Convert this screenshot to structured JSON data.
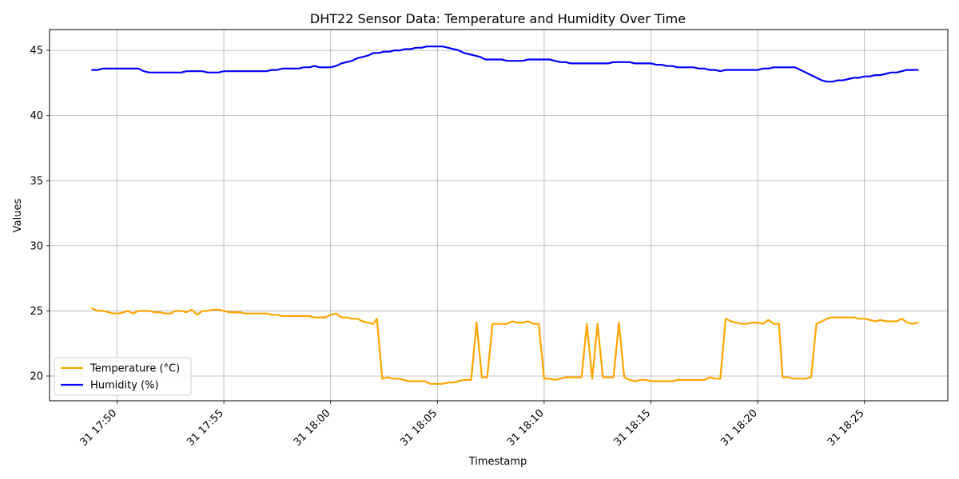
{
  "chart_data": {
    "type": "line",
    "title": "DHT22 Sensor Data: Temperature and Humidity Over Time",
    "xlabel": "Timestamp",
    "ylabel": "Values",
    "grid": true,
    "legend_position": "lower-left",
    "ylim": [
      18.1,
      46.6
    ],
    "xlim_minutes": [
      -2.3,
      5.07
    ],
    "x_ticks": [
      {
        "label": "31 17:50",
        "minute": 0
      },
      {
        "label": "31 17:55",
        "minute": 5
      },
      {
        "label": "31 18:00",
        "minute": 10
      },
      {
        "label": "31 18:05",
        "minute": 15
      },
      {
        "label": "31 18:10",
        "minute": 20
      },
      {
        "label": "31 18:15",
        "minute": 25
      },
      {
        "label": "31 18:20",
        "minute": 30
      },
      {
        "label": "31 18:25",
        "minute": 35
      }
    ],
    "y_ticks": [
      20,
      25,
      30,
      35,
      40,
      45
    ],
    "series": [
      {
        "name": "Temperature (°C)",
        "color": "#ffa500",
        "points": [
          [
            "17:48:50",
            25.2
          ],
          [
            "17:49:05",
            25.0
          ],
          [
            "17:49:20",
            25.0
          ],
          [
            "17:49:35",
            24.9
          ],
          [
            "17:49:50",
            24.8
          ],
          [
            "17:50:05",
            24.8
          ],
          [
            "17:50:20",
            24.9
          ],
          [
            "17:50:30",
            25.0
          ],
          [
            "17:50:45",
            24.8
          ],
          [
            "17:51:00",
            25.0
          ],
          [
            "17:51:15",
            25.0
          ],
          [
            "17:51:30",
            25.0
          ],
          [
            "17:51:45",
            24.9
          ],
          [
            "17:52:00",
            24.9
          ],
          [
            "17:52:15",
            24.8
          ],
          [
            "17:52:30",
            24.8
          ],
          [
            "17:52:45",
            25.0
          ],
          [
            "17:53:00",
            25.0
          ],
          [
            "17:53:15",
            24.9
          ],
          [
            "17:53:30",
            25.1
          ],
          [
            "17:53:45",
            24.7
          ],
          [
            "17:54:00",
            25.0
          ],
          [
            "17:54:15",
            25.0
          ],
          [
            "17:54:30",
            25.1
          ],
          [
            "17:54:45",
            25.1
          ],
          [
            "17:55:00",
            25.0
          ],
          [
            "17:55:15",
            24.9
          ],
          [
            "17:55:30",
            24.9
          ],
          [
            "17:55:45",
            24.9
          ],
          [
            "17:56:00",
            24.8
          ],
          [
            "17:56:30",
            24.8
          ],
          [
            "17:57:00",
            24.8
          ],
          [
            "17:57:15",
            24.7
          ],
          [
            "17:57:30",
            24.7
          ],
          [
            "17:57:45",
            24.6
          ],
          [
            "17:58:00",
            24.6
          ],
          [
            "17:58:30",
            24.6
          ],
          [
            "17:59:00",
            24.6
          ],
          [
            "17:59:15",
            24.5
          ],
          [
            "17:59:45",
            24.5
          ],
          [
            "18:00:00",
            24.7
          ],
          [
            "18:00:15",
            24.8
          ],
          [
            "18:00:30",
            24.5
          ],
          [
            "18:00:45",
            24.5
          ],
          [
            "18:01:00",
            24.4
          ],
          [
            "18:01:15",
            24.4
          ],
          [
            "18:01:30",
            24.2
          ],
          [
            "18:01:45",
            24.1
          ],
          [
            "18:02:00",
            24.0
          ],
          [
            "18:02:10",
            24.4
          ],
          [
            "18:02:25",
            19.8
          ],
          [
            "18:02:40",
            19.9
          ],
          [
            "18:02:55",
            19.8
          ],
          [
            "18:03:10",
            19.8
          ],
          [
            "18:03:25",
            19.7
          ],
          [
            "18:03:40",
            19.6
          ],
          [
            "18:04:10",
            19.6
          ],
          [
            "18:04:25",
            19.6
          ],
          [
            "18:04:40",
            19.4
          ],
          [
            "18:05:00",
            19.4
          ],
          [
            "18:05:15",
            19.4
          ],
          [
            "18:05:30",
            19.5
          ],
          [
            "18:05:45",
            19.5
          ],
          [
            "18:06:00",
            19.6
          ],
          [
            "18:06:15",
            19.7
          ],
          [
            "18:06:35",
            19.7
          ],
          [
            "18:06:50",
            24.1
          ],
          [
            "18:07:05",
            19.9
          ],
          [
            "18:07:20",
            19.9
          ],
          [
            "18:07:35",
            24.0
          ],
          [
            "18:08:00",
            24.0
          ],
          [
            "18:08:15",
            24.0
          ],
          [
            "18:08:30",
            24.2
          ],
          [
            "18:08:45",
            24.1
          ],
          [
            "18:09:00",
            24.1
          ],
          [
            "18:09:15",
            24.2
          ],
          [
            "18:09:30",
            24.0
          ],
          [
            "18:09:45",
            24.0
          ],
          [
            "18:10:00",
            19.8
          ],
          [
            "18:10:15",
            19.8
          ],
          [
            "18:10:30",
            19.7
          ],
          [
            "18:10:45",
            19.8
          ],
          [
            "18:11:00",
            19.9
          ],
          [
            "18:11:30",
            19.9
          ],
          [
            "18:11:45",
            19.9
          ],
          [
            "18:12:00",
            24.0
          ],
          [
            "18:12:15",
            19.8
          ],
          [
            "18:12:30",
            24.0
          ],
          [
            "18:12:45",
            19.9
          ],
          [
            "18:13:00",
            19.9
          ],
          [
            "18:13:15",
            19.9
          ],
          [
            "18:13:30",
            24.1
          ],
          [
            "18:13:45",
            19.9
          ],
          [
            "18:14:00",
            19.7
          ],
          [
            "18:14:15",
            19.6
          ],
          [
            "18:14:30",
            19.7
          ],
          [
            "18:14:45",
            19.7
          ],
          [
            "18:15:00",
            19.6
          ],
          [
            "18:15:30",
            19.6
          ],
          [
            "18:16:00",
            19.6
          ],
          [
            "18:16:15",
            19.7
          ],
          [
            "18:17:00",
            19.7
          ],
          [
            "18:17:30",
            19.7
          ],
          [
            "18:17:45",
            19.9
          ],
          [
            "18:18:00",
            19.8
          ],
          [
            "18:18:15",
            19.8
          ],
          [
            "18:18:30",
            24.4
          ],
          [
            "18:18:45",
            24.2
          ],
          [
            "18:19:00",
            24.1
          ],
          [
            "18:19:15",
            24.0
          ],
          [
            "18:19:30",
            24.0
          ],
          [
            "18:19:45",
            24.1
          ],
          [
            "18:20:00",
            24.1
          ],
          [
            "18:20:15",
            24.0
          ],
          [
            "18:20:30",
            24.3
          ],
          [
            "18:20:45",
            24.0
          ],
          [
            "18:21:00",
            24.0
          ],
          [
            "18:21:10",
            19.9
          ],
          [
            "18:21:25",
            19.9
          ],
          [
            "18:21:40",
            19.8
          ],
          [
            "18:22:00",
            19.8
          ],
          [
            "18:22:15",
            19.8
          ],
          [
            "18:22:30",
            19.9
          ],
          [
            "18:22:45",
            24.0
          ],
          [
            "18:23:00",
            24.2
          ],
          [
            "18:23:15",
            24.4
          ],
          [
            "18:23:30",
            24.5
          ],
          [
            "18:24:00",
            24.5
          ],
          [
            "18:24:30",
            24.5
          ],
          [
            "18:24:45",
            24.4
          ],
          [
            "18:25:00",
            24.4
          ],
          [
            "18:25:15",
            24.3
          ],
          [
            "18:25:30",
            24.2
          ],
          [
            "18:25:45",
            24.3
          ],
          [
            "18:26:00",
            24.2
          ],
          [
            "18:26:30",
            24.2
          ],
          [
            "18:26:45",
            24.4
          ],
          [
            "18:27:00",
            24.1
          ],
          [
            "18:27:15",
            24.0
          ],
          [
            "18:27:30",
            24.1
          ]
        ]
      },
      {
        "name": "Humidity (%)",
        "color": "#0000ff",
        "points": [
          [
            "17:48:50",
            43.5
          ],
          [
            "17:49:05",
            43.5
          ],
          [
            "17:49:20",
            43.6
          ],
          [
            "17:49:50",
            43.6
          ],
          [
            "17:50:30",
            43.6
          ],
          [
            "17:51:00",
            43.6
          ],
          [
            "17:51:15",
            43.4
          ],
          [
            "17:51:30",
            43.3
          ],
          [
            "17:52:00",
            43.3
          ],
          [
            "17:52:30",
            43.3
          ],
          [
            "17:53:00",
            43.3
          ],
          [
            "17:53:15",
            43.4
          ],
          [
            "17:53:30",
            43.4
          ],
          [
            "17:54:00",
            43.4
          ],
          [
            "17:54:15",
            43.3
          ],
          [
            "17:54:45",
            43.3
          ],
          [
            "17:55:00",
            43.4
          ],
          [
            "17:55:30",
            43.4
          ],
          [
            "17:56:00",
            43.4
          ],
          [
            "17:56:30",
            43.4
          ],
          [
            "17:57:00",
            43.4
          ],
          [
            "17:57:15",
            43.5
          ],
          [
            "17:57:30",
            43.5
          ],
          [
            "17:57:45",
            43.6
          ],
          [
            "17:58:00",
            43.6
          ],
          [
            "17:58:30",
            43.6
          ],
          [
            "17:58:45",
            43.7
          ],
          [
            "17:59:00",
            43.7
          ],
          [
            "17:59:15",
            43.8
          ],
          [
            "17:59:30",
            43.7
          ],
          [
            "18:00:00",
            43.7
          ],
          [
            "18:00:15",
            43.8
          ],
          [
            "18:00:30",
            44.0
          ],
          [
            "18:00:45",
            44.1
          ],
          [
            "18:01:00",
            44.2
          ],
          [
            "18:01:15",
            44.4
          ],
          [
            "18:01:30",
            44.5
          ],
          [
            "18:01:45",
            44.6
          ],
          [
            "18:02:00",
            44.8
          ],
          [
            "18:02:15",
            44.8
          ],
          [
            "18:02:30",
            44.9
          ],
          [
            "18:02:45",
            44.9
          ],
          [
            "18:03:00",
            45.0
          ],
          [
            "18:03:15",
            45.0
          ],
          [
            "18:03:30",
            45.1
          ],
          [
            "18:03:45",
            45.1
          ],
          [
            "18:04:00",
            45.2
          ],
          [
            "18:04:15",
            45.2
          ],
          [
            "18:04:30",
            45.3
          ],
          [
            "18:05:00",
            45.3
          ],
          [
            "18:05:15",
            45.3
          ],
          [
            "18:05:30",
            45.2
          ],
          [
            "18:05:45",
            45.1
          ],
          [
            "18:06:00",
            45.0
          ],
          [
            "18:06:15",
            44.8
          ],
          [
            "18:06:30",
            44.7
          ],
          [
            "18:06:45",
            44.6
          ],
          [
            "18:07:00",
            44.5
          ],
          [
            "18:07:15",
            44.3
          ],
          [
            "18:07:45",
            44.3
          ],
          [
            "18:08:00",
            44.3
          ],
          [
            "18:08:15",
            44.2
          ],
          [
            "18:08:45",
            44.2
          ],
          [
            "18:09:00",
            44.2
          ],
          [
            "18:09:15",
            44.3
          ],
          [
            "18:09:45",
            44.3
          ],
          [
            "18:10:00",
            44.3
          ],
          [
            "18:10:15",
            44.3
          ],
          [
            "18:10:30",
            44.2
          ],
          [
            "18:10:45",
            44.1
          ],
          [
            "18:11:00",
            44.1
          ],
          [
            "18:11:15",
            44.0
          ],
          [
            "18:11:45",
            44.0
          ],
          [
            "18:12:15",
            44.0
          ],
          [
            "18:12:45",
            44.0
          ],
          [
            "18:13:00",
            44.0
          ],
          [
            "18:13:15",
            44.1
          ],
          [
            "18:13:45",
            44.1
          ],
          [
            "18:14:00",
            44.1
          ],
          [
            "18:14:15",
            44.0
          ],
          [
            "18:14:45",
            44.0
          ],
          [
            "18:15:00",
            44.0
          ],
          [
            "18:15:15",
            43.9
          ],
          [
            "18:15:30",
            43.9
          ],
          [
            "18:15:45",
            43.8
          ],
          [
            "18:16:00",
            43.8
          ],
          [
            "18:16:15",
            43.7
          ],
          [
            "18:16:45",
            43.7
          ],
          [
            "18:17:00",
            43.7
          ],
          [
            "18:17:15",
            43.6
          ],
          [
            "18:17:30",
            43.6
          ],
          [
            "18:17:45",
            43.5
          ],
          [
            "18:18:00",
            43.5
          ],
          [
            "18:18:15",
            43.4
          ],
          [
            "18:18:30",
            43.5
          ],
          [
            "18:19:00",
            43.5
          ],
          [
            "18:19:30",
            43.5
          ],
          [
            "18:20:00",
            43.5
          ],
          [
            "18:20:15",
            43.6
          ],
          [
            "18:20:30",
            43.6
          ],
          [
            "18:20:45",
            43.7
          ],
          [
            "18:21:15",
            43.7
          ],
          [
            "18:21:45",
            43.7
          ],
          [
            "18:22:00",
            43.5
          ],
          [
            "18:22:15",
            43.3
          ],
          [
            "18:22:30",
            43.1
          ],
          [
            "18:22:45",
            42.9
          ],
          [
            "18:23:00",
            42.7
          ],
          [
            "18:23:15",
            42.6
          ],
          [
            "18:23:30",
            42.6
          ],
          [
            "18:23:45",
            42.7
          ],
          [
            "18:24:00",
            42.7
          ],
          [
            "18:24:15",
            42.8
          ],
          [
            "18:24:30",
            42.9
          ],
          [
            "18:24:45",
            42.9
          ],
          [
            "18:25:00",
            43.0
          ],
          [
            "18:25:15",
            43.0
          ],
          [
            "18:25:30",
            43.1
          ],
          [
            "18:25:45",
            43.1
          ],
          [
            "18:26:00",
            43.2
          ],
          [
            "18:26:15",
            43.3
          ],
          [
            "18:26:30",
            43.3
          ],
          [
            "18:26:45",
            43.4
          ],
          [
            "18:27:00",
            43.5
          ],
          [
            "18:27:30",
            43.5
          ]
        ]
      }
    ]
  }
}
